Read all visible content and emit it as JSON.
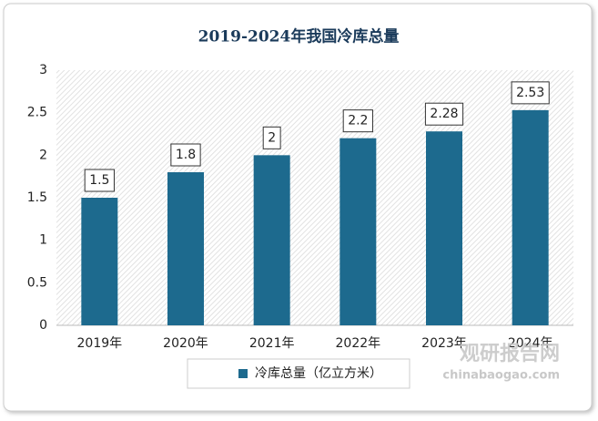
{
  "chart_data": {
    "type": "bar",
    "title": "2019-2024年我国冷库总量",
    "categories": [
      "2019年",
      "2020年",
      "2021年",
      "2022年",
      "2023年",
      "2024年"
    ],
    "series": [
      {
        "name": "冷库总量（亿立方米）",
        "color": "#1d6a8e",
        "values": [
          1.5,
          1.8,
          2,
          2.2,
          2.28,
          2.53
        ]
      }
    ],
    "ylim": [
      0,
      3
    ],
    "yticks": [
      0,
      0.5,
      1,
      1.5,
      2,
      2.5,
      3
    ],
    "watermark": {
      "name": "观研报告网",
      "url": "chinabaogao.com"
    }
  }
}
